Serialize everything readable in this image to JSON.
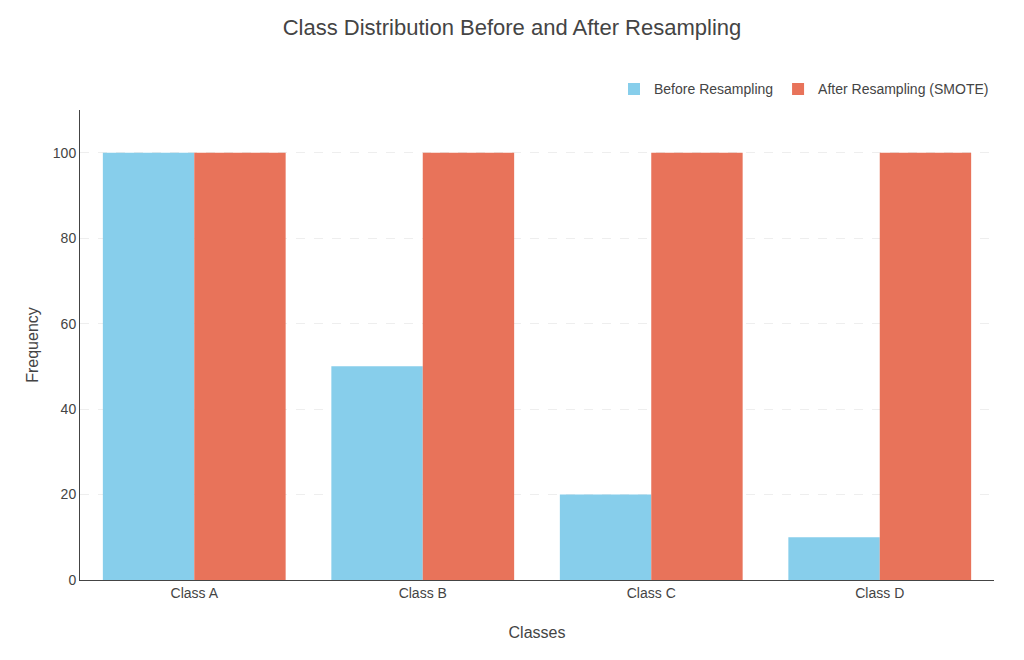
{
  "chart_data": {
    "type": "bar",
    "title": "Class Distribution Before and After Resampling",
    "xlabel": "Classes",
    "ylabel": "Frequency",
    "categories": [
      "Class A",
      "Class B",
      "Class C",
      "Class D"
    ],
    "series": [
      {
        "name": "Before Resampling",
        "color": "#87CEEB",
        "values": [
          100,
          50,
          20,
          10
        ]
      },
      {
        "name": "After Resampling (SMOTE)",
        "color": "#E8735A",
        "values": [
          100,
          100,
          100,
          100
        ]
      }
    ],
    "ylim": [
      0,
      110
    ],
    "yticks": [
      0,
      20,
      40,
      60,
      80,
      100
    ],
    "grid": true,
    "legend": "upper right"
  }
}
